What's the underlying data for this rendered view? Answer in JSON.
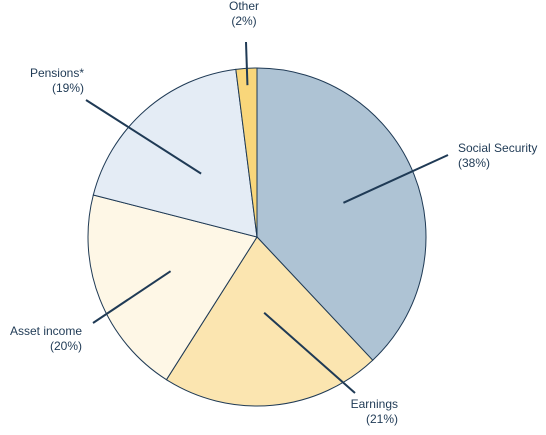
{
  "chart_data": {
    "type": "pie",
    "title": "",
    "start_angle_deg": -90,
    "direction": "clockwise",
    "slices": [
      {
        "name": "Social Security",
        "value": 38,
        "label": "Social Security",
        "pct": "(38%)",
        "color": "#aec3d4"
      },
      {
        "name": "Earnings",
        "value": 21,
        "label": "Earnings",
        "pct": "(21%)",
        "color": "#fbe5b0"
      },
      {
        "name": "Asset income",
        "value": 20,
        "label": "Asset income",
        "pct": "(20%)",
        "color": "#fef7e6"
      },
      {
        "name": "Pensions",
        "value": 19,
        "label": "Pensions*",
        "pct": "(19%)",
        "color": "#e4ecf5"
      },
      {
        "name": "Other",
        "value": 2,
        "label": "Other",
        "pct": "(2%)",
        "color": "#f9d67a"
      }
    ]
  }
}
